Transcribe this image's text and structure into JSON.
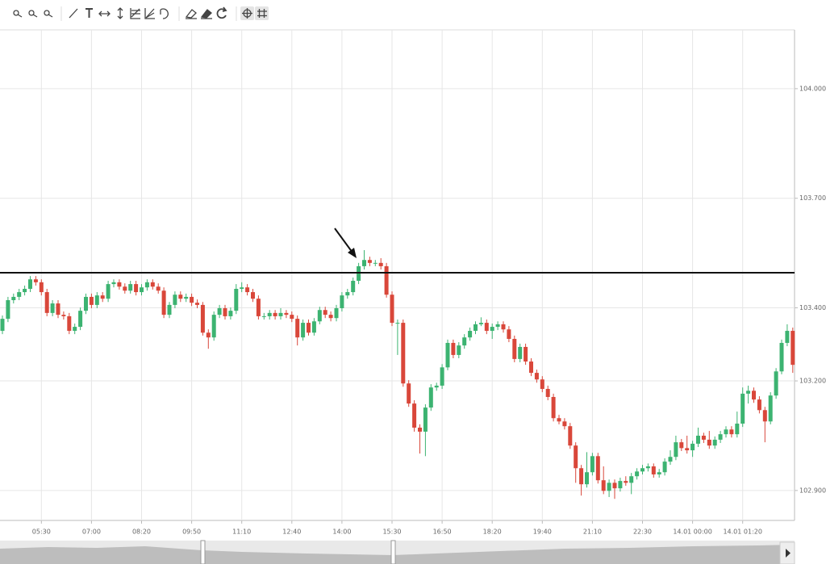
{
  "chart_data": {
    "type": "candlestick",
    "up_color": "#3cb371",
    "down_color": "#d9473a",
    "grid": true,
    "ylim": [
      102.818,
      104.161
    ],
    "yticks": [
      {
        "value": 104.0,
        "label": "104.000"
      },
      {
        "value": 103.7,
        "label": "103.700"
      },
      {
        "value": 103.4,
        "label": "103.400"
      },
      {
        "value": 103.2,
        "label": "103.200"
      },
      {
        "value": 102.9,
        "label": "102.900"
      }
    ],
    "hline": 103.496,
    "categories": [
      null,
      null,
      null,
      null,
      null,
      null,
      null,
      "05:30",
      null,
      null,
      null,
      null,
      null,
      null,
      null,
      null,
      "07:00",
      null,
      null,
      null,
      null,
      null,
      null,
      null,
      null,
      "08:20",
      null,
      null,
      null,
      null,
      null,
      null,
      null,
      null,
      "09:50",
      null,
      null,
      null,
      null,
      null,
      null,
      null,
      null,
      "11:10",
      null,
      null,
      null,
      null,
      null,
      null,
      null,
      null,
      "12:40",
      null,
      null,
      null,
      null,
      null,
      null,
      null,
      null,
      "14:00",
      null,
      null,
      null,
      null,
      null,
      null,
      null,
      null,
      "15:30",
      null,
      null,
      null,
      null,
      null,
      null,
      null,
      null,
      "16:50",
      null,
      null,
      null,
      null,
      null,
      null,
      null,
      null,
      "18:20",
      null,
      null,
      null,
      null,
      null,
      null,
      null,
      null,
      "19:40",
      null,
      null,
      null,
      null,
      null,
      null,
      null,
      null,
      "21:10",
      null,
      null,
      null,
      null,
      null,
      null,
      null,
      null,
      "22:30",
      null,
      null,
      null,
      null,
      null,
      null,
      null,
      null,
      "14.01 00:00",
      null,
      null,
      null,
      null,
      null,
      null,
      null,
      null,
      "14.01 01:20",
      null,
      null,
      null,
      null,
      null,
      null,
      null,
      null,
      null
    ],
    "ohlc": [
      [
        103.337,
        103.379,
        103.328,
        103.37
      ],
      [
        103.37,
        103.43,
        103.361,
        103.421
      ],
      [
        103.421,
        103.439,
        103.412,
        103.43
      ],
      [
        103.43,
        103.452,
        103.421,
        103.443
      ],
      [
        103.443,
        103.461,
        103.434,
        103.452
      ],
      [
        103.452,
        103.487,
        103.443,
        103.478
      ],
      [
        103.478,
        103.487,
        103.461,
        103.47
      ],
      [
        103.47,
        103.478,
        103.434,
        103.443
      ],
      [
        103.443,
        103.452,
        103.377,
        103.386
      ],
      [
        103.386,
        103.421,
        103.377,
        103.412
      ],
      [
        103.412,
        103.421,
        103.372,
        103.381
      ],
      [
        103.381,
        103.39,
        103.368,
        103.377
      ],
      [
        103.377,
        103.386,
        103.328,
        103.337
      ],
      [
        103.337,
        103.357,
        103.328,
        103.348
      ],
      [
        103.348,
        103.401,
        103.339,
        103.392
      ],
      [
        103.392,
        103.439,
        103.383,
        103.43
      ],
      [
        103.43,
        103.439,
        103.399,
        103.408
      ],
      [
        103.408,
        103.443,
        103.399,
        103.434
      ],
      [
        103.434,
        103.443,
        103.416,
        103.425
      ],
      [
        103.425,
        103.474,
        103.416,
        103.465
      ],
      [
        103.465,
        103.478,
        103.456,
        103.47
      ],
      [
        103.47,
        103.478,
        103.45,
        103.458
      ],
      [
        103.458,
        103.467,
        103.439,
        103.447
      ],
      [
        103.447,
        103.474,
        103.439,
        103.465
      ],
      [
        103.465,
        103.474,
        103.434,
        103.443
      ],
      [
        103.443,
        103.465,
        103.434,
        103.456
      ],
      [
        103.456,
        103.478,
        103.447,
        103.47
      ],
      [
        103.47,
        103.478,
        103.45,
        103.458
      ],
      [
        103.458,
        103.467,
        103.439,
        103.447
      ],
      [
        103.447,
        103.456,
        103.372,
        103.381
      ],
      [
        103.381,
        103.416,
        103.372,
        103.408
      ],
      [
        103.408,
        103.445,
        103.399,
        103.436
      ],
      [
        103.436,
        103.445,
        103.416,
        103.425
      ],
      [
        103.425,
        103.439,
        103.416,
        103.43
      ],
      [
        103.43,
        103.439,
        103.405,
        103.414
      ],
      [
        103.414,
        103.423,
        103.399,
        103.408
      ],
      [
        103.408,
        103.416,
        103.324,
        103.332
      ],
      [
        103.332,
        103.341,
        103.288,
        103.319
      ],
      [
        103.319,
        103.39,
        103.31,
        103.381
      ],
      [
        103.381,
        103.408,
        103.372,
        103.399
      ],
      [
        103.399,
        103.408,
        103.368,
        103.377
      ],
      [
        103.377,
        103.401,
        103.368,
        103.392
      ],
      [
        103.392,
        103.465,
        103.383,
        103.452
      ],
      [
        103.452,
        103.47,
        103.443,
        103.456
      ],
      [
        103.456,
        103.465,
        103.434,
        103.443
      ],
      [
        103.443,
        103.452,
        103.416,
        103.425
      ],
      [
        103.425,
        103.434,
        103.368,
        103.377
      ],
      [
        103.377,
        103.386,
        103.368,
        103.377
      ],
      [
        103.377,
        103.394,
        103.368,
        103.386
      ],
      [
        103.386,
        103.394,
        103.368,
        103.377
      ],
      [
        103.377,
        103.399,
        103.368,
        103.386
      ],
      [
        103.386,
        103.394,
        103.372,
        103.381
      ],
      [
        103.381,
        103.39,
        103.361,
        103.37
      ],
      [
        103.37,
        103.379,
        103.297,
        103.319
      ],
      [
        103.319,
        103.368,
        103.31,
        103.359
      ],
      [
        103.359,
        103.368,
        103.324,
        103.332
      ],
      [
        103.332,
        103.372,
        103.324,
        103.363
      ],
      [
        103.363,
        103.403,
        103.355,
        103.394
      ],
      [
        103.394,
        103.403,
        103.372,
        103.381
      ],
      [
        103.381,
        103.39,
        103.363,
        103.372
      ],
      [
        103.372,
        103.408,
        103.363,
        103.399
      ],
      [
        103.399,
        103.443,
        103.39,
        103.434
      ],
      [
        103.434,
        103.452,
        103.425,
        103.443
      ],
      [
        103.443,
        103.483,
        103.434,
        103.474
      ],
      [
        103.474,
        103.523,
        103.465,
        103.514
      ],
      [
        103.514,
        103.558,
        103.505,
        103.531
      ],
      [
        103.531,
        103.54,
        103.514,
        103.523
      ],
      [
        103.523,
        103.531,
        103.514,
        103.523
      ],
      [
        103.523,
        103.536,
        103.505,
        103.514
      ],
      [
        103.514,
        103.523,
        103.428,
        103.436
      ],
      [
        103.436,
        103.445,
        103.35,
        103.359
      ],
      [
        103.359,
        103.368,
        103.271,
        103.359
      ],
      [
        103.359,
        103.368,
        103.184,
        103.193
      ],
      [
        103.193,
        103.202,
        103.129,
        103.138
      ],
      [
        103.138,
        103.147,
        103.061,
        103.072
      ],
      [
        103.072,
        103.081,
        103.001,
        103.061
      ],
      [
        103.061,
        103.136,
        102.994,
        103.127
      ],
      [
        103.127,
        103.191,
        103.118,
        103.182
      ],
      [
        103.182,
        103.195,
        103.173,
        103.187
      ],
      [
        103.187,
        103.246,
        103.178,
        103.237
      ],
      [
        103.237,
        103.313,
        103.229,
        103.304
      ],
      [
        103.304,
        103.313,
        103.262,
        103.271
      ],
      [
        103.271,
        103.306,
        103.262,
        103.297
      ],
      [
        103.297,
        103.328,
        103.288,
        103.319
      ],
      [
        103.319,
        103.346,
        103.31,
        103.337
      ],
      [
        103.337,
        103.363,
        103.328,
        103.355
      ],
      [
        103.355,
        103.374,
        103.35,
        103.359
      ],
      [
        103.359,
        103.368,
        103.328,
        103.337
      ],
      [
        103.337,
        103.357,
        103.315,
        103.348
      ],
      [
        103.348,
        103.363,
        103.339,
        103.355
      ],
      [
        103.355,
        103.363,
        103.332,
        103.341
      ],
      [
        103.341,
        103.35,
        103.306,
        103.315
      ],
      [
        103.315,
        103.324,
        103.251,
        103.26
      ],
      [
        103.26,
        103.302,
        103.251,
        103.293
      ],
      [
        103.293,
        103.302,
        103.244,
        103.253
      ],
      [
        103.253,
        103.262,
        103.213,
        103.222
      ],
      [
        103.222,
        103.231,
        103.195,
        103.204
      ],
      [
        103.204,
        103.213,
        103.169,
        103.178
      ],
      [
        103.178,
        103.187,
        103.147,
        103.156
      ],
      [
        103.156,
        103.165,
        103.089,
        103.098
      ],
      [
        103.098,
        103.107,
        103.081,
        103.089
      ],
      [
        103.089,
        103.098,
        103.067,
        103.076
      ],
      [
        103.076,
        103.085,
        103.014,
        103.023
      ],
      [
        103.023,
        103.032,
        102.921,
        102.961
      ],
      [
        102.961,
        102.97,
        102.886,
        102.917
      ],
      [
        102.917,
        103.005,
        102.908,
        102.95
      ],
      [
        102.95,
        103.003,
        102.941,
        102.994
      ],
      [
        102.994,
        103.003,
        102.919,
        102.928
      ],
      [
        102.928,
        102.966,
        102.89,
        102.899
      ],
      [
        102.899,
        102.93,
        102.882,
        102.921
      ],
      [
        102.921,
        102.93,
        102.877,
        102.906
      ],
      [
        102.906,
        102.935,
        102.897,
        102.926
      ],
      [
        102.926,
        102.939,
        102.913,
        102.921
      ],
      [
        102.921,
        102.948,
        102.89,
        102.939
      ],
      [
        102.939,
        102.961,
        102.93,
        102.952
      ],
      [
        102.952,
        102.97,
        102.944,
        102.961
      ],
      [
        102.961,
        102.974,
        102.952,
        102.966
      ],
      [
        102.966,
        102.974,
        102.935,
        102.944
      ],
      [
        102.944,
        102.959,
        102.935,
        102.95
      ],
      [
        102.95,
        102.988,
        102.941,
        102.979
      ],
      [
        102.979,
        103.01,
        102.97,
        102.992
      ],
      [
        102.992,
        103.05,
        102.983,
        103.032
      ],
      [
        103.032,
        103.041,
        103.008,
        103.016
      ],
      [
        103.016,
        103.05,
        103.001,
        103.01
      ],
      [
        103.01,
        103.036,
        102.992,
        103.028
      ],
      [
        103.028,
        103.072,
        103.019,
        103.05
      ],
      [
        103.05,
        103.058,
        103.03,
        103.039
      ],
      [
        103.039,
        103.063,
        103.014,
        103.023
      ],
      [
        103.023,
        103.048,
        103.014,
        103.039
      ],
      [
        103.039,
        103.063,
        103.03,
        103.054
      ],
      [
        103.054,
        103.076,
        103.045,
        103.067
      ],
      [
        103.067,
        103.076,
        103.045,
        103.054
      ],
      [
        103.054,
        103.116,
        103.045,
        103.083
      ],
      [
        103.083,
        103.182,
        103.074,
        103.165
      ],
      [
        103.165,
        103.187,
        103.138,
        103.173
      ],
      [
        103.173,
        103.182,
        103.14,
        103.149
      ],
      [
        103.149,
        103.158,
        103.111,
        103.12
      ],
      [
        103.12,
        103.129,
        103.032,
        103.089
      ],
      [
        103.089,
        103.169,
        103.081,
        103.16
      ],
      [
        103.16,
        103.235,
        103.151,
        103.226
      ],
      [
        103.226,
        103.313,
        103.218,
        103.304
      ],
      [
        103.304,
        103.355,
        103.295,
        103.337
      ],
      [
        103.337,
        103.346,
        103.222,
        103.244
      ]
    ]
  }
}
